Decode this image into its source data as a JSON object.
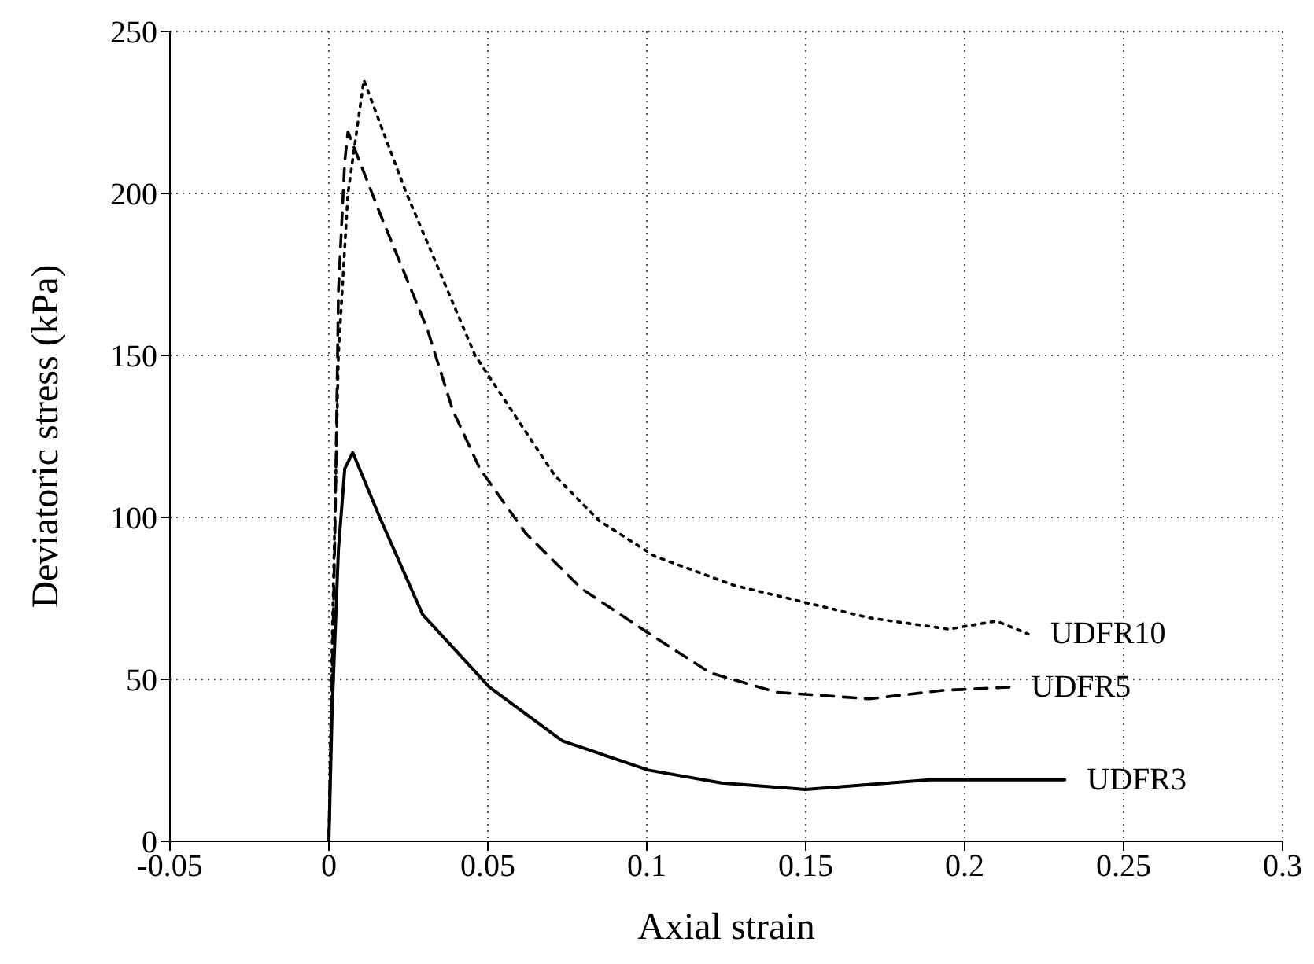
{
  "chart_data": {
    "type": "line",
    "xlabel": "Axial strain",
    "ylabel": "Deviatoric stress (kPa)",
    "xlim": [
      -0.05,
      0.3
    ],
    "xticks": [
      -0.05,
      0,
      0.05,
      0.1,
      0.15,
      0.2,
      0.25,
      0.3
    ],
    "ylim": [
      0,
      250
    ],
    "yticks": [
      0,
      50,
      100,
      150,
      200,
      250
    ],
    "grid": true,
    "legend": false,
    "marker": "none",
    "series": [
      {
        "name": "UDFR10",
        "color": "#000000",
        "line_style": "dotted",
        "x": [
          0,
          0.001,
          0.003,
          0.006,
          0.011,
          0.024,
          0.046,
          0.071,
          0.085,
          0.1025,
          0.1275,
          0.17,
          0.195,
          0.21,
          0.22
        ],
        "values": [
          0,
          60,
          150,
          200,
          235,
          201,
          150,
          113,
          99,
          88,
          79,
          69,
          65.5,
          68,
          64
        ]
      },
      {
        "name": "UDFR5",
        "color": "#000000",
        "line_style": "dashed",
        "x": [
          0,
          0.002,
          0.003,
          0.005,
          0.006,
          0.016,
          0.031,
          0.039,
          0.0475,
          0.062,
          0.0795,
          0.1025,
          0.12,
          0.141,
          0.17,
          0.193,
          0.214
        ],
        "values": [
          0,
          100,
          170,
          210,
          219,
          194,
          158,
          133,
          115,
          95,
          78,
          63,
          52,
          46,
          44,
          46.6,
          47.6
        ]
      },
      {
        "name": "UDFR3",
        "color": "#000000",
        "line_style": "solid",
        "x": [
          0,
          0.001,
          0.003,
          0.005,
          0.0075,
          0.016,
          0.0295,
          0.0505,
          0.0735,
          0.1005,
          0.1235,
          0.15,
          0.189,
          0.2315
        ],
        "values": [
          0,
          40,
          90,
          115,
          120,
          100,
          70,
          47.6,
          31,
          22,
          18,
          16,
          19,
          19
        ]
      }
    ]
  }
}
